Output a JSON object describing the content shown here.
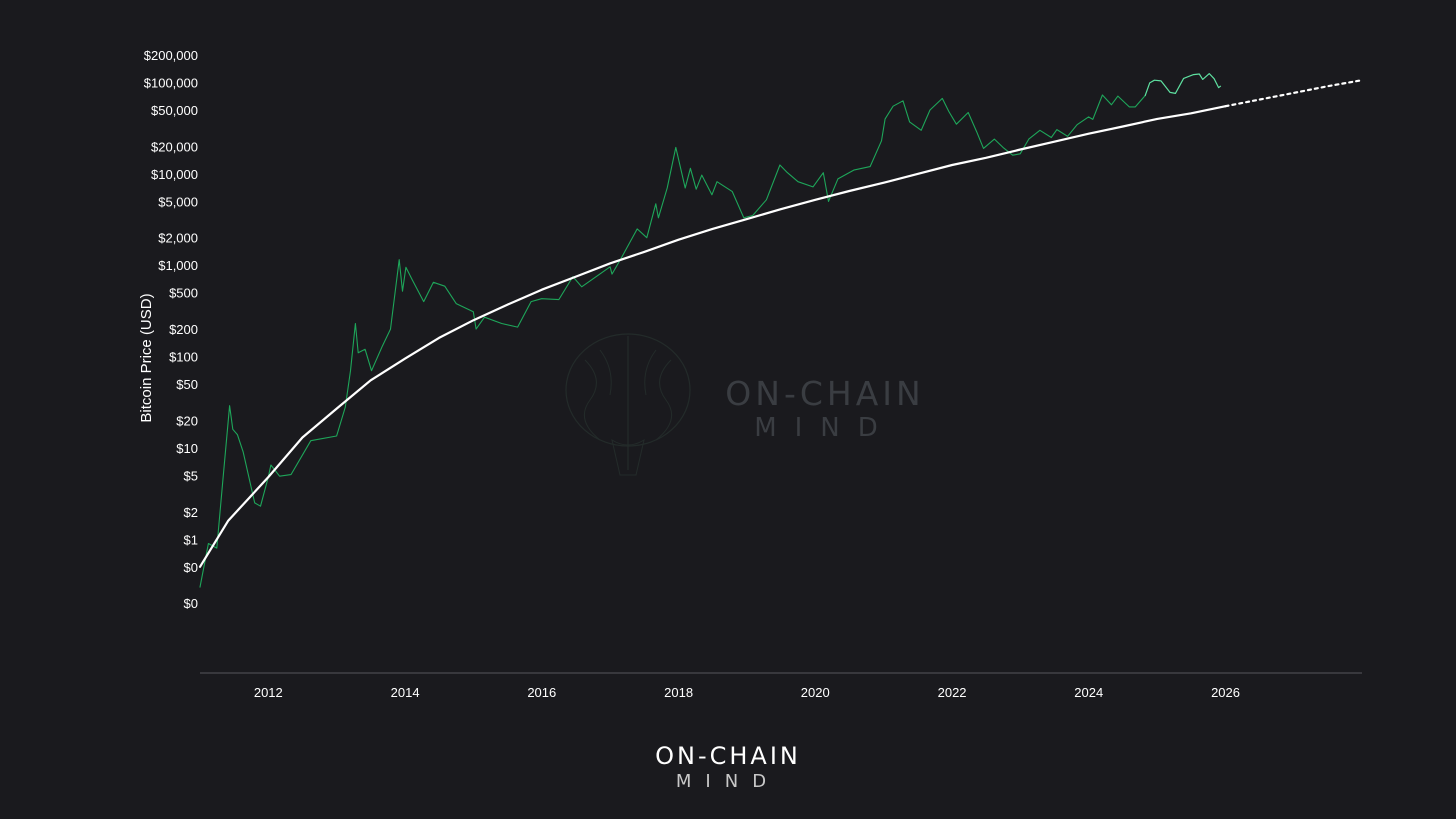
{
  "colors": {
    "background": "#1a1a1e",
    "price": "#1ea65a",
    "price_recent": "#5ee0a0",
    "model": "#ffffff",
    "axis": "#55555c",
    "watermark": "#3a3d42"
  },
  "watermark": {
    "name": "ON-CHAIN",
    "sub": "MIND",
    "icon": "brain-icon"
  },
  "footer_brand": {
    "name": "ON-CHAIN",
    "sub": "MIND"
  },
  "chart_data": {
    "type": "line",
    "title": "",
    "xlabel": "",
    "ylabel": "Bitcoin Price (USD)",
    "yscale": "log",
    "xlim": [
      "2011-01-01",
      "2027-12-31"
    ],
    "ylim": [
      0.04,
      200000
    ],
    "grid": false,
    "legend": "none",
    "x_ticks": [
      {
        "value": "2012-01-01",
        "label": "2012"
      },
      {
        "value": "2014-01-01",
        "label": "2014"
      },
      {
        "value": "2016-01-01",
        "label": "2016"
      },
      {
        "value": "2018-01-01",
        "label": "2018"
      },
      {
        "value": "2020-01-01",
        "label": "2020"
      },
      {
        "value": "2022-01-01",
        "label": "2022"
      },
      {
        "value": "2024-01-01",
        "label": "2024"
      },
      {
        "value": "2026-01-01",
        "label": "2026"
      }
    ],
    "y_ticks": [
      {
        "value": 200000,
        "label": "$200,000"
      },
      {
        "value": 100000,
        "label": "$100,000"
      },
      {
        "value": 50000,
        "label": "$50,000"
      },
      {
        "value": 20000,
        "label": "$20,000"
      },
      {
        "value": 10000,
        "label": "$10,000"
      },
      {
        "value": 5000,
        "label": "$5,000"
      },
      {
        "value": 2000,
        "label": "$2,000"
      },
      {
        "value": 1000,
        "label": "$1,000"
      },
      {
        "value": 500,
        "label": "$500"
      },
      {
        "value": 200,
        "label": "$200"
      },
      {
        "value": 100,
        "label": "$100"
      },
      {
        "value": 50,
        "label": "$50"
      },
      {
        "value": 20,
        "label": "$20"
      },
      {
        "value": 10,
        "label": "$10"
      },
      {
        "value": 5,
        "label": "$5"
      },
      {
        "value": 2,
        "label": "$2"
      },
      {
        "value": 1,
        "label": "$1"
      },
      {
        "value": 0.5,
        "label": "$0"
      },
      {
        "value": 0.2,
        "label": "$0"
      }
    ],
    "series": [
      {
        "kind": "price",
        "style": "thin-green",
        "points": [
          [
            "2011-01-01",
            0.3
          ],
          [
            "2011-02-15",
            0.9
          ],
          [
            "2011-04-01",
            0.8
          ],
          [
            "2011-05-01",
            4.0
          ],
          [
            "2011-06-08",
            29.0
          ],
          [
            "2011-06-25",
            16.0
          ],
          [
            "2011-07-20",
            14.0
          ],
          [
            "2011-08-20",
            9.0
          ],
          [
            "2011-10-20",
            2.5
          ],
          [
            "2011-11-20",
            2.3
          ],
          [
            "2011-12-31",
            4.7
          ],
          [
            "2012-01-15",
            6.5
          ],
          [
            "2012-03-01",
            4.9
          ],
          [
            "2012-05-01",
            5.1
          ],
          [
            "2012-08-15",
            12.0
          ],
          [
            "2012-10-01",
            12.5
          ],
          [
            "2012-12-31",
            13.5
          ],
          [
            "2013-02-15",
            28.0
          ],
          [
            "2013-03-15",
            70.0
          ],
          [
            "2013-04-10",
            230.0
          ],
          [
            "2013-04-25",
            110.0
          ],
          [
            "2013-06-01",
            120.0
          ],
          [
            "2013-07-05",
            70.0
          ],
          [
            "2013-09-01",
            130.0
          ],
          [
            "2013-10-15",
            200.0
          ],
          [
            "2013-11-30",
            1150.0
          ],
          [
            "2013-12-18",
            520.0
          ],
          [
            "2014-01-05",
            950.0
          ],
          [
            "2014-02-10",
            680.0
          ],
          [
            "2014-04-10",
            400.0
          ],
          [
            "2014-06-01",
            650.0
          ],
          [
            "2014-08-01",
            590.0
          ],
          [
            "2014-10-01",
            380.0
          ],
          [
            "2014-12-31",
            310.0
          ],
          [
            "2015-01-15",
            200.0
          ],
          [
            "2015-03-01",
            270.0
          ],
          [
            "2015-06-01",
            230.0
          ],
          [
            "2015-08-25",
            210.0
          ],
          [
            "2015-11-05",
            400.0
          ],
          [
            "2015-12-31",
            430.0
          ],
          [
            "2016-04-01",
            420.0
          ],
          [
            "2016-06-15",
            750.0
          ],
          [
            "2016-08-01",
            580.0
          ],
          [
            "2016-12-31",
            960.0
          ],
          [
            "2017-01-10",
            800.0
          ],
          [
            "2017-03-01",
            1200.0
          ],
          [
            "2017-05-25",
            2500.0
          ],
          [
            "2017-07-15",
            2000.0
          ],
          [
            "2017-09-01",
            4700.0
          ],
          [
            "2017-09-15",
            3300.0
          ],
          [
            "2017-11-01",
            7000.0
          ],
          [
            "2017-12-17",
            19500.0
          ],
          [
            "2018-02-05",
            7000.0
          ],
          [
            "2018-03-05",
            11500.0
          ],
          [
            "2018-04-05",
            6800.0
          ],
          [
            "2018-05-05",
            9700.0
          ],
          [
            "2018-06-28",
            5900.0
          ],
          [
            "2018-07-25",
            8200.0
          ],
          [
            "2018-10-15",
            6400.0
          ],
          [
            "2018-12-15",
            3300.0
          ],
          [
            "2019-02-01",
            3500.0
          ],
          [
            "2019-04-15",
            5200.0
          ],
          [
            "2019-06-26",
            12500.0
          ],
          [
            "2019-08-01",
            10500.0
          ],
          [
            "2019-10-01",
            8200.0
          ],
          [
            "2019-12-20",
            7200.0
          ],
          [
            "2020-02-13",
            10300.0
          ],
          [
            "2020-03-12",
            5000.0
          ],
          [
            "2020-05-01",
            8800.0
          ],
          [
            "2020-07-25",
            11000.0
          ],
          [
            "2020-10-20",
            12000.0
          ],
          [
            "2020-12-20",
            23000.0
          ],
          [
            "2021-01-08",
            40000.0
          ],
          [
            "2021-02-20",
            55000.0
          ],
          [
            "2021-04-14",
            63000.0
          ],
          [
            "2021-05-19",
            37000.0
          ],
          [
            "2021-07-20",
            30000.0
          ],
          [
            "2021-09-05",
            50000.0
          ],
          [
            "2021-11-10",
            67000.0
          ],
          [
            "2021-12-15",
            48000.0
          ],
          [
            "2022-01-24",
            35000.0
          ],
          [
            "2022-03-28",
            47000.0
          ],
          [
            "2022-05-12",
            29000.0
          ],
          [
            "2022-06-18",
            19000.0
          ],
          [
            "2022-08-15",
            24000.0
          ],
          [
            "2022-09-30",
            19500.0
          ],
          [
            "2022-11-21",
            16000.0
          ],
          [
            "2022-12-31",
            16600.0
          ],
          [
            "2023-02-15",
            24000.0
          ],
          [
            "2023-04-15",
            30000.0
          ],
          [
            "2023-06-15",
            25000.0
          ],
          [
            "2023-07-15",
            30500.0
          ],
          [
            "2023-09-10",
            25800.0
          ],
          [
            "2023-10-31",
            34500.0
          ],
          [
            "2023-12-31",
            42000.0
          ],
          [
            "2024-01-23",
            39500.0
          ],
          [
            "2024-03-14",
            73000.0
          ],
          [
            "2024-05-01",
            57000.0
          ],
          [
            "2024-06-05",
            71000.0
          ],
          [
            "2024-08-05",
            54000.0
          ],
          [
            "2024-09-06",
            54000.0
          ],
          [
            "2024-10-29",
            72000.0
          ],
          [
            "2024-11-22",
            99000.0
          ],
          [
            "2024-12-17",
            106000.0
          ],
          [
            "2025-01-21",
            104000.0
          ],
          [
            "2025-03-10",
            78000.0
          ],
          [
            "2025-04-08",
            76000.0
          ],
          [
            "2025-05-22",
            111000.0
          ],
          [
            "2025-07-14",
            122000.0
          ],
          [
            "2025-08-14",
            124000.0
          ],
          [
            "2025-09-01",
            108000.0
          ],
          [
            "2025-10-06",
            125000.0
          ],
          [
            "2025-11-01",
            110000.0
          ],
          [
            "2025-11-25",
            88000.0
          ],
          [
            "2025-12-05",
            91000.0
          ]
        ]
      },
      {
        "kind": "model",
        "style": "thick-white",
        "points": [
          [
            "2011-01-01",
            0.5
          ],
          [
            "2011-06-01",
            1.6
          ],
          [
            "2012-01-01",
            4.8
          ],
          [
            "2012-07-01",
            13.0
          ],
          [
            "2013-01-01",
            27.0
          ],
          [
            "2013-07-01",
            55.0
          ],
          [
            "2014-01-01",
            95.0
          ],
          [
            "2014-07-01",
            160.0
          ],
          [
            "2015-01-01",
            250.0
          ],
          [
            "2015-07-01",
            370.0
          ],
          [
            "2016-01-01",
            540.0
          ],
          [
            "2016-07-01",
            750.0
          ],
          [
            "2017-01-01",
            1050.0
          ],
          [
            "2017-07-01",
            1400.0
          ],
          [
            "2018-01-01",
            1900.0
          ],
          [
            "2018-07-01",
            2500.0
          ],
          [
            "2019-01-01",
            3200.0
          ],
          [
            "2019-07-01",
            4100.0
          ],
          [
            "2020-01-01",
            5200.0
          ],
          [
            "2020-07-01",
            6500.0
          ],
          [
            "2021-01-01",
            8000.0
          ],
          [
            "2021-07-01",
            10000.0
          ],
          [
            "2022-01-01",
            12500.0
          ],
          [
            "2022-07-01",
            15000.0
          ],
          [
            "2023-01-01",
            18500.0
          ],
          [
            "2023-07-01",
            22500.0
          ],
          [
            "2024-01-01",
            27500.0
          ],
          [
            "2024-07-01",
            33000.0
          ],
          [
            "2025-01-01",
            40000.0
          ],
          [
            "2025-07-01",
            46000.0
          ],
          [
            "2026-01-01",
            55000.0
          ]
        ]
      },
      {
        "kind": "model-projection",
        "style": "dotted-white",
        "points": [
          [
            "2026-01-01",
            55000.0
          ],
          [
            "2026-07-01",
            65000.0
          ],
          [
            "2027-01-01",
            77000.0
          ],
          [
            "2027-07-01",
            91000.0
          ],
          [
            "2027-12-31",
            106000.0
          ]
        ]
      }
    ]
  }
}
